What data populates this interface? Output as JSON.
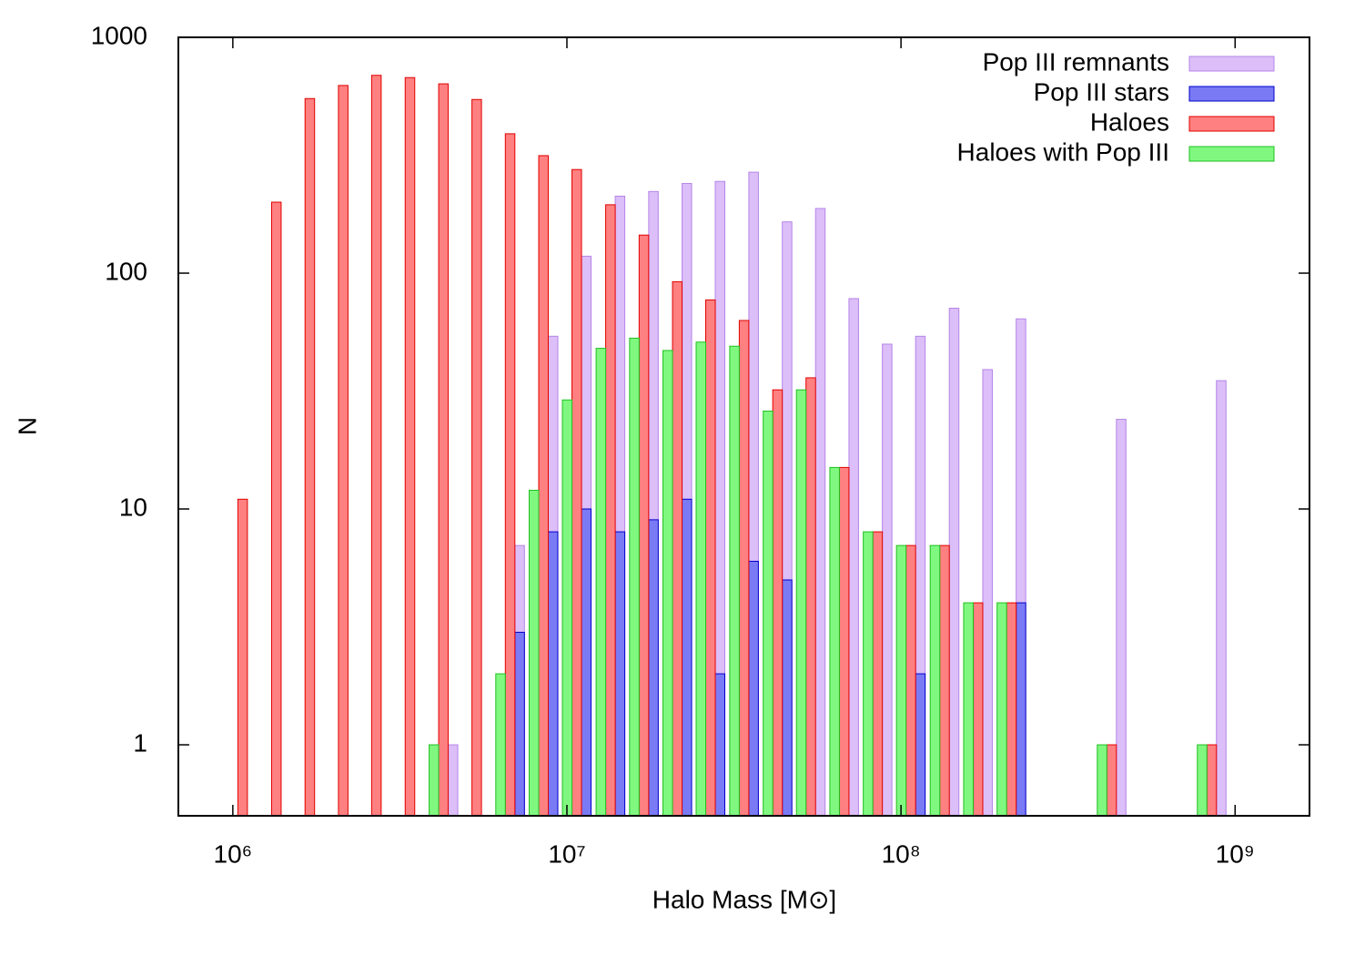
{
  "chart_data": {
    "type": "bar",
    "xlabel": "Halo Mass [M⊙]",
    "ylabel": "N",
    "x": [
      1070000,
      1350000,
      1700000,
      2140000,
      2690000,
      3390000,
      4270000,
      5370000,
      6760000,
      8510000,
      10700000,
      13500000,
      17000000,
      21400000,
      26900000,
      33900000,
      42700000,
      53700000,
      67600000,
      85100000,
      107000000,
      135000000,
      170000000,
      214000000,
      269000000,
      339000000,
      427000000,
      537000000,
      676000000,
      851000000
    ],
    "xscale": "log",
    "yscale": "log",
    "xlim": [
      687000,
      1670000000
    ],
    "ylim": [
      0.5,
      1000
    ],
    "xticks": [
      {
        "value": 1000000,
        "label": "10⁶"
      },
      {
        "value": 10000000,
        "label": "10⁷"
      },
      {
        "value": 100000000,
        "label": "10⁸"
      },
      {
        "value": 1000000000,
        "label": "10⁹"
      }
    ],
    "yticks": [
      1,
      10,
      100,
      1000
    ],
    "legend": "upper right",
    "series": [
      {
        "name": "Pop III remnants",
        "color": "#dcbef8",
        "edge": "#b585e8",
        "offset": 1,
        "values": [
          null,
          null,
          null,
          null,
          null,
          null,
          1,
          null,
          7,
          54,
          118,
          212,
          222,
          240,
          245,
          268,
          165,
          188,
          78,
          50,
          54,
          71,
          39,
          64,
          null,
          null,
          24,
          null,
          null,
          35
        ]
      },
      {
        "name": "Pop III stars",
        "color": "#7a7af5",
        "edge": "#0000cc",
        "offset": 1,
        "values": [
          null,
          null,
          null,
          null,
          null,
          null,
          null,
          null,
          3,
          8,
          10,
          8,
          9,
          11,
          2,
          6,
          5,
          null,
          null,
          null,
          2,
          null,
          null,
          4,
          null,
          null,
          null,
          null,
          null,
          null
        ]
      },
      {
        "name": "Haloes",
        "color": "#ff8080",
        "edge": "#e00000",
        "offset": 0,
        "values": [
          11,
          200,
          550,
          625,
          690,
          675,
          635,
          545,
          390,
          315,
          275,
          195,
          145,
          92,
          77,
          63,
          32,
          36,
          15,
          8,
          7,
          7,
          4,
          4,
          null,
          null,
          1,
          null,
          null,
          1
        ]
      },
      {
        "name": "Haloes with Pop III",
        "color": "#80f880",
        "edge": "#20c020",
        "offset": -1,
        "values": [
          null,
          null,
          null,
          null,
          null,
          null,
          1,
          null,
          2,
          12,
          29,
          48,
          53,
          47,
          51,
          49,
          26,
          32,
          15,
          8,
          7,
          7,
          4,
          4,
          null,
          null,
          1,
          null,
          null,
          1
        ]
      }
    ]
  }
}
